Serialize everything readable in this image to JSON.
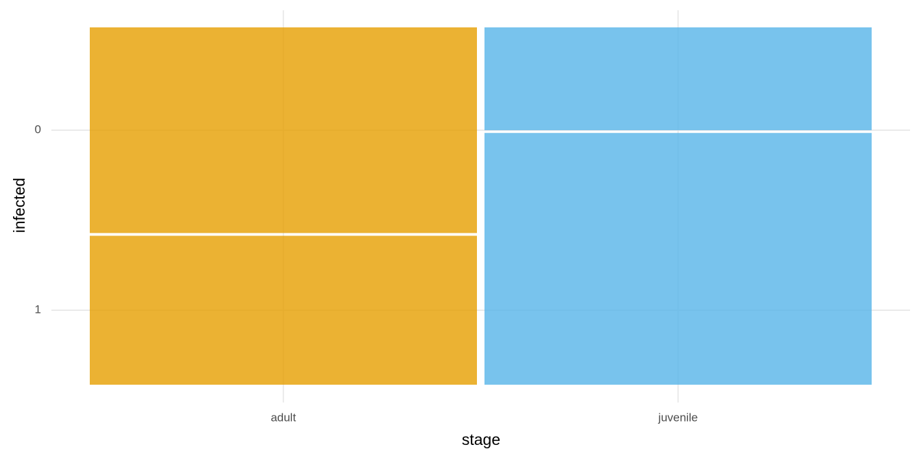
{
  "chart_data": {
    "type": "mosaic",
    "x_label": "stage",
    "y_label": "infected",
    "categories": [
      "adult",
      "juvenile"
    ],
    "widths": [
      50,
      50
    ],
    "colors": [
      "#e69f00",
      "#56b4e9"
    ],
    "series": [
      {
        "name": "0",
        "values": [
          58,
          29
        ]
      },
      {
        "name": "1",
        "values": [
          42,
          71
        ]
      }
    ],
    "grid": true
  }
}
